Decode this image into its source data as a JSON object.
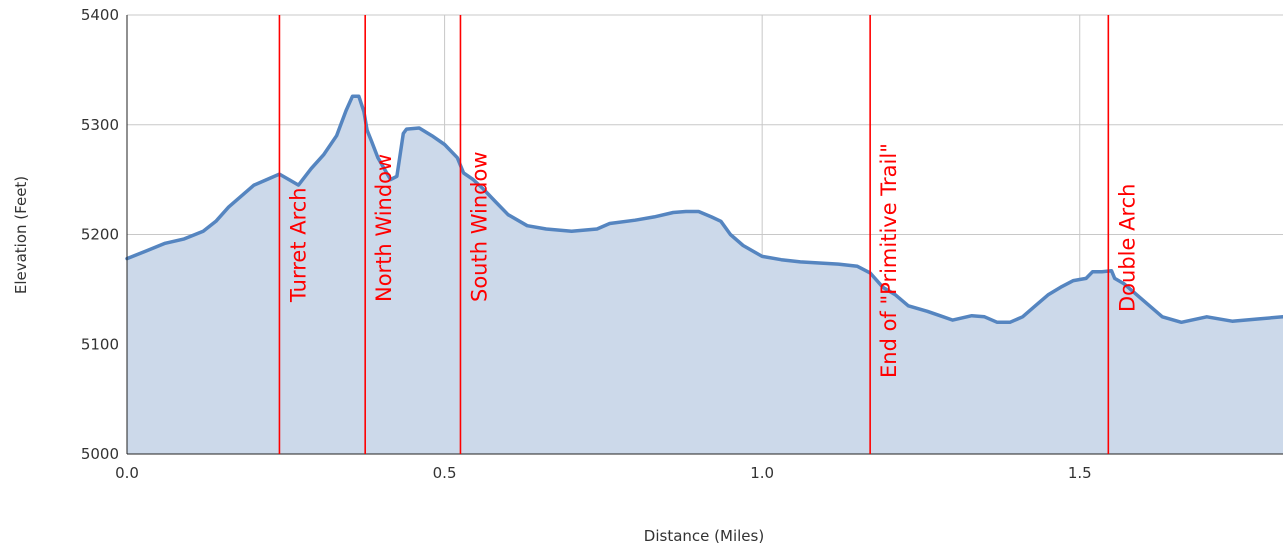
{
  "chart_data": {
    "type": "area",
    "title": "",
    "xlabel": "Distance (Miles)",
    "ylabel": "Elevation (Feet)",
    "xlim": [
      0,
      1.82
    ],
    "ylim": [
      5000,
      5400
    ],
    "xticks": [
      0.0,
      0.5,
      1.0,
      1.5
    ],
    "xtick_labels": [
      "0.0",
      "0.5",
      "1.0",
      "1.5"
    ],
    "yticks": [
      5000,
      5100,
      5200,
      5300,
      5400
    ],
    "ytick_labels": [
      "5000",
      "5100",
      "5200",
      "5300",
      "5400"
    ],
    "grid": "on",
    "legend": "none",
    "colors": {
      "line": "#5585c0",
      "fill": "#ccd9ea",
      "grid": "#c8c8c8",
      "marker": "#ff0000",
      "annotation": "#ff0000"
    },
    "series": [
      {
        "x": [
          0.0,
          0.03,
          0.06,
          0.09,
          0.12,
          0.14,
          0.16,
          0.18,
          0.2,
          0.22,
          0.24,
          0.255,
          0.27,
          0.29,
          0.31,
          0.33,
          0.345,
          0.355,
          0.365,
          0.373,
          0.378,
          0.385,
          0.395,
          0.405,
          0.415,
          0.425,
          0.435,
          0.44,
          0.46,
          0.48,
          0.5,
          0.52,
          0.53,
          0.545,
          0.56,
          0.58,
          0.6,
          0.63,
          0.66,
          0.7,
          0.74,
          0.76,
          0.8,
          0.83,
          0.86,
          0.88,
          0.9,
          0.92,
          0.935,
          0.95,
          0.97,
          1.0,
          1.03,
          1.06,
          1.09,
          1.12,
          1.15,
          1.17,
          1.19,
          1.21,
          1.23,
          1.26,
          1.28,
          1.3,
          1.33,
          1.35,
          1.37,
          1.39,
          1.41,
          1.43,
          1.45,
          1.47,
          1.49,
          1.51,
          1.52,
          1.535,
          1.55,
          1.555,
          1.57,
          1.6,
          1.63,
          1.66,
          1.7,
          1.74,
          1.78,
          1.82
        ],
        "y": [
          5178,
          5185,
          5192,
          5196,
          5203,
          5212,
          5225,
          5235,
          5245,
          5250,
          5255,
          5250,
          5245,
          5260,
          5273,
          5290,
          5313,
          5326,
          5326,
          5312,
          5295,
          5285,
          5270,
          5260,
          5250,
          5253,
          5292,
          5296,
          5297,
          5290,
          5282,
          5270,
          5256,
          5250,
          5242,
          5230,
          5218,
          5208,
          5205,
          5203,
          5205,
          5210,
          5213,
          5216,
          5220,
          5221,
          5221,
          5216,
          5212,
          5200,
          5190,
          5180,
          5177,
          5175,
          5174,
          5173,
          5171,
          5165,
          5152,
          5145,
          5135,
          5130,
          5126,
          5122,
          5126,
          5125,
          5120,
          5120,
          5125,
          5135,
          5145,
          5152,
          5158,
          5160,
          5166,
          5166,
          5167,
          5160,
          5155,
          5140,
          5125,
          5120,
          5125,
          5121,
          5123,
          5125
        ]
      }
    ],
    "markers": [
      {
        "x": 0.24,
        "label": "Turret Arch"
      },
      {
        "x": 0.375,
        "label": "North Window"
      },
      {
        "x": 0.525,
        "label": "South Window"
      },
      {
        "x": 1.17,
        "label": "End of \"Primitive Trail\""
      },
      {
        "x": 1.545,
        "label": "Double Arch"
      }
    ]
  }
}
